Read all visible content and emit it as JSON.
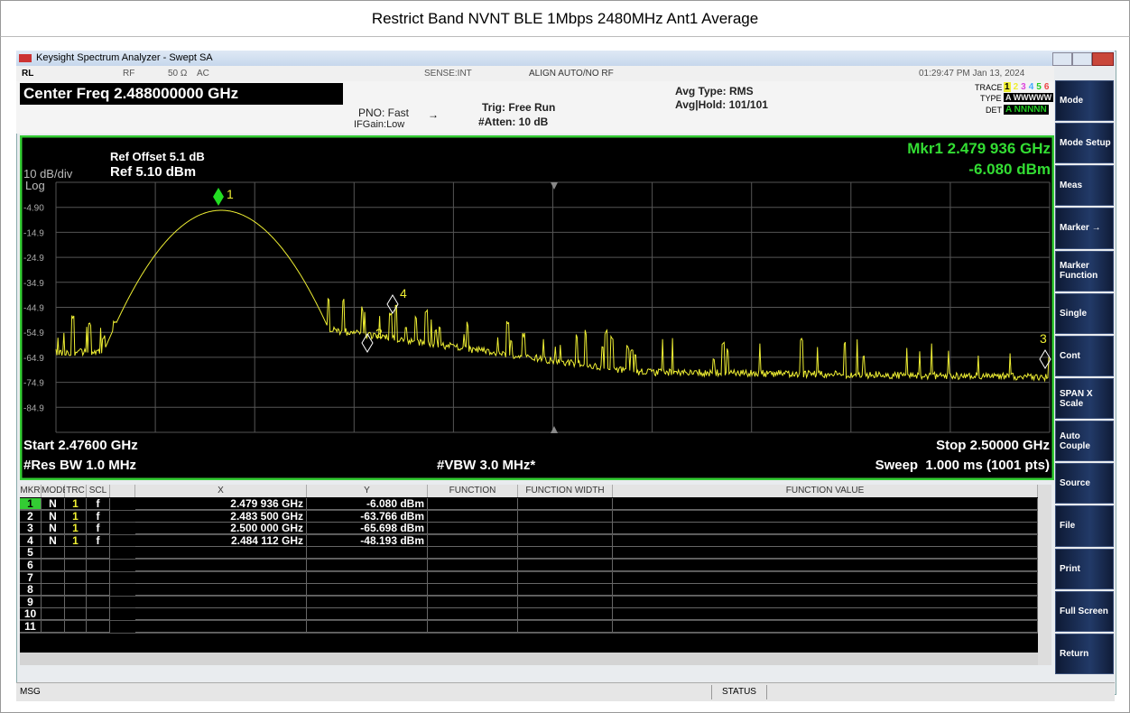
{
  "header": {
    "title": "Restrict Band NVNT BLE 1Mbps 2480MHz Ant1 Average"
  },
  "window": {
    "title": "Keysight Spectrum Analyzer - Swept SA"
  },
  "status_bar": {
    "rl": "RL",
    "rf": "RF",
    "impedance": "50 Ω",
    "coupling": "AC",
    "sense": "SENSE:INT",
    "align": "ALIGN AUTO/NO RF",
    "datetime": "01:29:47 PM Jan 13, 2024"
  },
  "settings": {
    "center_freq": "Center Freq 2.488000000 GHz",
    "pno": "PNO: Fast",
    "ifgain": "IFGain:Low",
    "trig": "Trig: Free Run",
    "atten": "#Atten: 10 dB",
    "avg_type": "Avg Type: RMS",
    "avg_hold": "Avg|Hold: 101/101",
    "trace_label": "TRACE",
    "trace_nums": [
      "1",
      "2",
      "3",
      "4",
      "5",
      "6"
    ],
    "type_label": "TYPE",
    "type_value": "A WWWWW",
    "det_label": "DET",
    "det_value": "A NNNNN"
  },
  "graph": {
    "ref_offset": "Ref Offset 5.1 dB",
    "scale": "10 dB/div",
    "ref_level": "Ref 5.10 dBm",
    "scale_type": "Log",
    "marker_readout": "Mkr1 2.479 936 GHz",
    "marker_value": "-6.080 dBm",
    "y_labels": [
      "-4.90",
      "-14.9",
      "-24.9",
      "-34.9",
      "-44.9",
      "-54.9",
      "-64.9",
      "-74.9",
      "-84.9"
    ],
    "start": "Start 2.47600 GHz",
    "res_bw": "#Res BW 1.0 MHz",
    "vbw": "#VBW 3.0 MHz*",
    "stop": "Stop 2.50000 GHz",
    "sweep": "Sweep  1.000 ms (1001 pts)"
  },
  "table": {
    "columns": [
      "MKR",
      "MODE",
      "TRC",
      "SCL",
      "X",
      "Y",
      "FUNCTION",
      "FUNCTION WIDTH",
      "FUNCTION VALUE"
    ],
    "rows": [
      [
        "1",
        "N",
        "1",
        "f",
        "2.479 936 GHz",
        "-6.080 dBm"
      ],
      [
        "2",
        "N",
        "1",
        "f",
        "2.483 500 GHz",
        "-63.766 dBm"
      ],
      [
        "3",
        "N",
        "1",
        "f",
        "2.500 000 GHz",
        "-65.698 dBm"
      ],
      [
        "4",
        "N",
        "1",
        "f",
        "2.484 112 GHz",
        "-48.193 dBm"
      ],
      [
        "5"
      ],
      [
        "6"
      ],
      [
        "7"
      ],
      [
        "8"
      ],
      [
        "9"
      ],
      [
        "10"
      ],
      [
        "11"
      ]
    ]
  },
  "softkeys": [
    "Mode",
    "Mode Setup",
    "Meas",
    "Marker →",
    "Marker Function",
    "Single",
    "Cont",
    "SPAN X Scale",
    "Auto Couple",
    "Source",
    "File",
    "Print",
    "Full Screen",
    "Return"
  ],
  "footer": {
    "msg": "MSG",
    "status": "STATUS"
  }
}
